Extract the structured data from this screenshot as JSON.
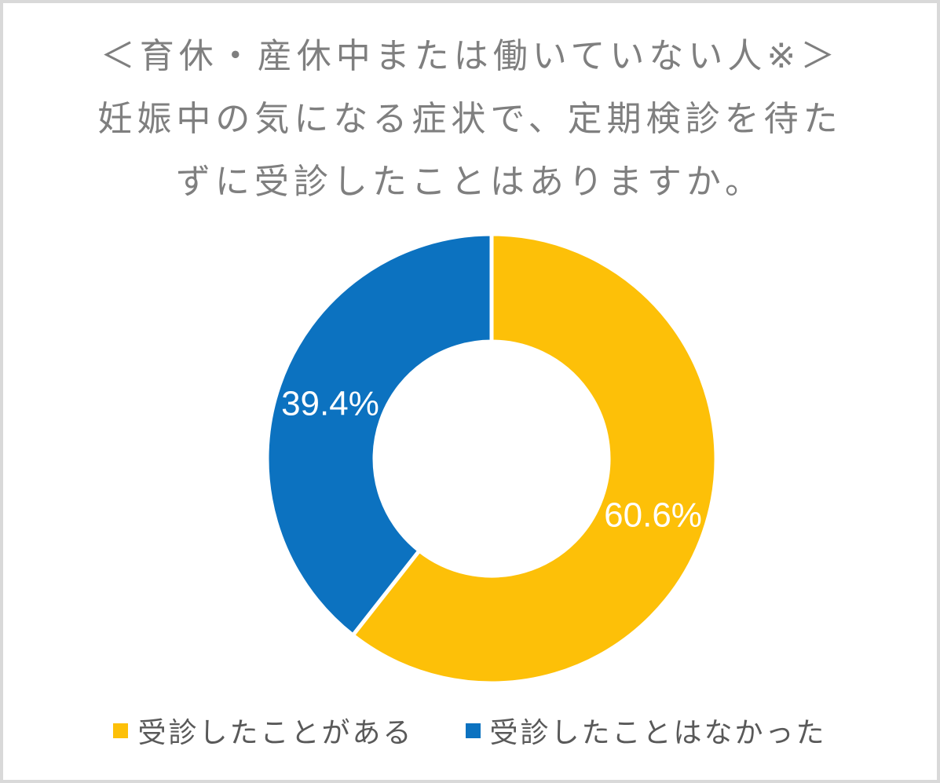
{
  "card": {
    "background": "#ffffff",
    "border_color": "#d9d9d9"
  },
  "title": {
    "lines": [
      "＜育休・産休中または働いていない人※＞",
      "妊娠中の気になる症状で、定期検診を待た",
      "ずに受診したことはありますか。"
    ],
    "color": "#7f7f7f"
  },
  "chart_data": {
    "type": "pie",
    "subtype": "donut",
    "title": "＜育休・産休中または働いていない人※＞妊娠中の気になる症状で、定期検診を待たずに受診したことはありますか。",
    "categories": [
      "受診したことがある",
      "受診したことはなかった"
    ],
    "values": [
      60.6,
      39.4
    ],
    "data_labels": [
      "60.6%",
      "39.4%"
    ],
    "colors": [
      "#FDC008",
      "#0C72C0"
    ],
    "data_label_color": "#ffffff",
    "start_angle_deg": 0,
    "direction": "clockwise",
    "hole_ratio": 0.52,
    "slice_border_color": "#ffffff",
    "legend_position": "bottom",
    "legend_text_color": "#595959"
  }
}
